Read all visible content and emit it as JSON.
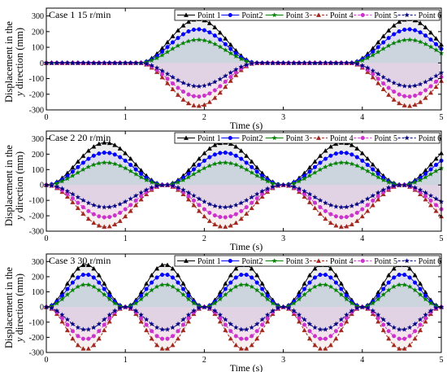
{
  "figure": {
    "y_axis_label_line1": "Displacement in the",
    "y_axis_label_line2_italic": "y",
    "y_axis_label_line2_rest": " direction (mm)"
  },
  "chart_data": [
    {
      "type": "line",
      "title": "Case 1   15 r/min",
      "xlabel": "Time (s)",
      "ylabel": "Displacement in the y direction (mm)",
      "xlim": [
        0,
        5
      ],
      "ylim": [
        -300,
        350
      ],
      "xticks": [
        0,
        1,
        2,
        3,
        4,
        5
      ],
      "yticks": [
        -300,
        -200,
        -100,
        0,
        100,
        200,
        300
      ],
      "legend": "top-right",
      "period_s": 2.667,
      "rest_fraction": 0.44,
      "series": [
        {
          "name": "Point 1",
          "color": "#000000",
          "marker": "triangle-up",
          "fill": true,
          "amplitude_mm": 280
        },
        {
          "name": "Point2",
          "color": "#0000ff",
          "marker": "circle",
          "fill": true,
          "amplitude_mm": 215
        },
        {
          "name": "Point 3",
          "color": "#008000",
          "marker": "star",
          "fill": true,
          "amplitude_mm": 148
        },
        {
          "name": "Point 4",
          "color": "#a0281e",
          "marker": "triangle-up",
          "fill": true,
          "dashed": true,
          "amplitude_mm": -275
        },
        {
          "name": "Point 5",
          "color": "#cc33cc",
          "marker": "circle",
          "fill": true,
          "dashed": true,
          "amplitude_mm": -215
        },
        {
          "name": "Point 6",
          "color": "#000080",
          "marker": "star",
          "fill": true,
          "dashed": true,
          "amplitude_mm": -150
        }
      ]
    },
    {
      "type": "line",
      "title": "Case 2   20 r/min",
      "xlabel": "Time (s)",
      "ylabel": "Displacement in the y direction (mm)",
      "xlim": [
        0,
        5
      ],
      "ylim": [
        -300,
        350
      ],
      "xticks": [
        0,
        1,
        2,
        3,
        4,
        5
      ],
      "yticks": [
        -300,
        -200,
        -100,
        0,
        100,
        200,
        300
      ],
      "legend": "top-right",
      "period_s": 1.5,
      "rest_fraction": 0.0,
      "series": [
        {
          "name": "Point 1",
          "color": "#000000",
          "marker": "triangle-up",
          "fill": true,
          "amplitude_mm": 275
        },
        {
          "name": "Point2",
          "color": "#0000ff",
          "marker": "circle",
          "fill": true,
          "amplitude_mm": 210
        },
        {
          "name": "Point 3",
          "color": "#008000",
          "marker": "star",
          "fill": true,
          "amplitude_mm": 145
        },
        {
          "name": "Point 4",
          "color": "#a0281e",
          "marker": "triangle-up",
          "fill": true,
          "dashed": true,
          "amplitude_mm": -272
        },
        {
          "name": "Point 5",
          "color": "#cc33cc",
          "marker": "circle",
          "fill": true,
          "dashed": true,
          "amplitude_mm": -210
        },
        {
          "name": "Point 6",
          "color": "#000080",
          "marker": "star",
          "fill": true,
          "dashed": true,
          "amplitude_mm": -145
        }
      ]
    },
    {
      "type": "line",
      "title": "Case 3   30 r/min",
      "xlabel": "Time (s)",
      "ylabel": "Displacement in the y direction (mm)",
      "xlim": [
        0,
        5
      ],
      "ylim": [
        -300,
        350
      ],
      "xticks": [
        0,
        1,
        2,
        3,
        4,
        5
      ],
      "yticks": [
        -300,
        -200,
        -100,
        0,
        100,
        200,
        300
      ],
      "legend": "top-right",
      "period_s": 1.0,
      "rest_fraction": 0.0,
      "series": [
        {
          "name": "Point 1",
          "color": "#000000",
          "marker": "triangle-up",
          "fill": true,
          "amplitude_mm": 280
        },
        {
          "name": "Point2",
          "color": "#0000ff",
          "marker": "circle",
          "fill": true,
          "amplitude_mm": 215
        },
        {
          "name": "Point 3",
          "color": "#008000",
          "marker": "star",
          "fill": true,
          "amplitude_mm": 148
        },
        {
          "name": "Point 4",
          "color": "#a0281e",
          "marker": "triangle-up",
          "fill": true,
          "dashed": true,
          "amplitude_mm": -278
        },
        {
          "name": "Point 5",
          "color": "#cc33cc",
          "marker": "circle",
          "fill": true,
          "dashed": true,
          "amplitude_mm": -212
        },
        {
          "name": "Point 6",
          "color": "#000080",
          "marker": "star",
          "fill": true,
          "dashed": true,
          "amplitude_mm": -150
        }
      ]
    }
  ]
}
